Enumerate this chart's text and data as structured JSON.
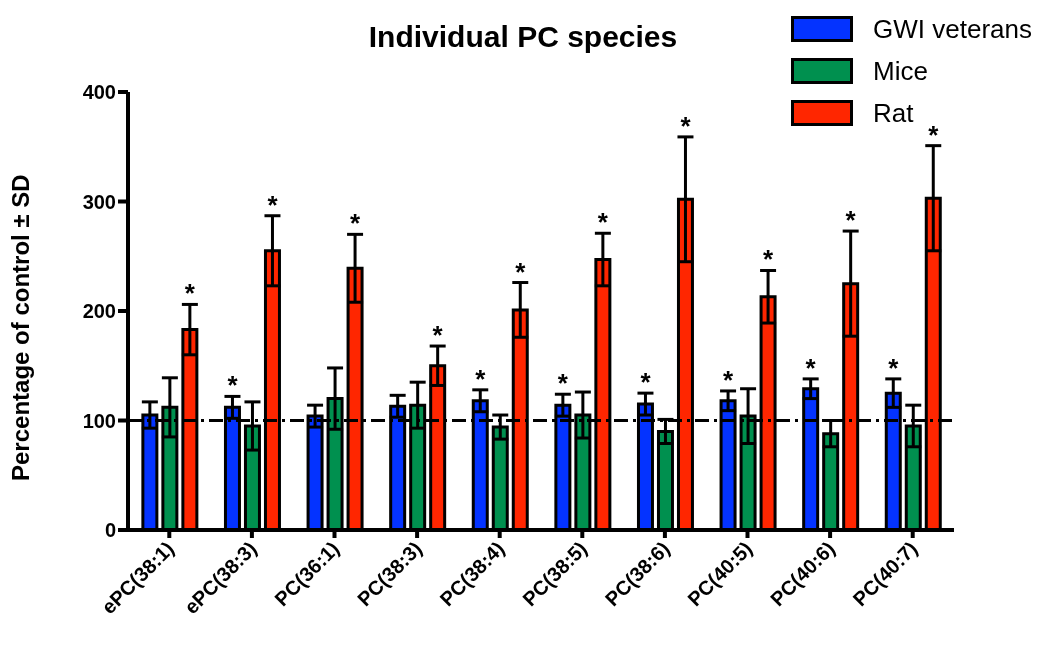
{
  "chart_data": {
    "type": "bar",
    "title": "Individual PC species",
    "ylabel": "Percentage of control ± SD",
    "categories": [
      "ePC(38:1)",
      "ePC(38:3)",
      "PC(36:1)",
      "PC(38:3)",
      "PC(38:4)",
      "PC(38:5)",
      "PC(38:6)",
      "PC(40:5)",
      "PC(40:6)",
      "PC(40:7)"
    ],
    "series": [
      {
        "name": "GWI veterans",
        "color": "#0433ff",
        "values": [
          105,
          112,
          104,
          113,
          118,
          114,
          115,
          118,
          129,
          125
        ],
        "errors": [
          12,
          10,
          10,
          10,
          10,
          10,
          10,
          9,
          9,
          13
        ],
        "value_labels": [
          null,
          "*",
          null,
          null,
          "*",
          "*",
          "*",
          "*",
          "*",
          "*"
        ]
      },
      {
        "name": "Mice",
        "color": "#00904f",
        "values": [
          112,
          95,
          120,
          114,
          94,
          105,
          90,
          104,
          88,
          95
        ],
        "errors": [
          27,
          22,
          28,
          21,
          11,
          21,
          11,
          25,
          12,
          19
        ],
        "value_labels": [
          null,
          null,
          null,
          null,
          null,
          null,
          null,
          null,
          null,
          null
        ]
      },
      {
        "name": "Rat",
        "color": "#ff2600",
        "values": [
          183,
          255,
          239,
          150,
          201,
          247,
          302,
          213,
          225,
          303
        ],
        "errors": [
          23,
          32,
          31,
          18,
          25,
          24,
          57,
          24,
          48,
          48
        ],
        "value_labels": [
          "*",
          "*",
          "*",
          "*",
          "*",
          "*",
          "*",
          "*",
          "*",
          "*"
        ]
      }
    ],
    "ylim": [
      0,
      400
    ],
    "yticks": [
      0,
      100,
      200,
      300,
      400
    ],
    "ref_lines": [
      {
        "axis": "y",
        "value": 100,
        "color": "#000000",
        "line_style": "dashed"
      }
    ],
    "legend": "top right",
    "grid": false
  }
}
